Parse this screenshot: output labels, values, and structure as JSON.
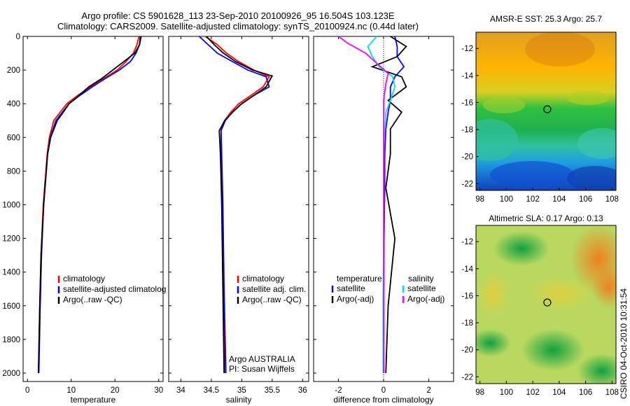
{
  "figure": {
    "title_line1": "Argo profile: CS 5901628_113 23-Sep-2010 20100926_95 16.504S 103.123E",
    "title_line2": "Climatology: CARS2009. Satellite-adjusted climatology: synTS_20100924.nc (0.44d later)",
    "credit": "CSIRO 04-Oct-2010 10:31:54",
    "argo_label_line1": "Argo AUSTRALIA",
    "argo_label_line2": "PI: Susan Wijffels"
  },
  "colors": {
    "climatology": "#ff0000",
    "satellite": "#0000ff",
    "argo": "#000000",
    "sat_sal": "#00e0e0",
    "argo_sal": "#ff00ff"
  },
  "chart_data": [
    {
      "type": "line",
      "xlabel": "temperature",
      "xlim": [
        -1,
        31
      ],
      "ylim": [
        2050,
        0
      ],
      "xticks": [
        0,
        10,
        20,
        30
      ],
      "yticks": [
        0,
        200,
        400,
        600,
        800,
        1000,
        1200,
        1400,
        1600,
        1800,
        2000
      ],
      "legend": [
        "climatology",
        "satellite-adjusted climatolog",
        "Argo(..raw -QC)"
      ],
      "series": [
        {
          "name": "climatology",
          "color": "#ff0000",
          "x": [
            25.5,
            25.0,
            24.2,
            22.5,
            20.5,
            17.5,
            14.5,
            11.5,
            9.0,
            7.5,
            6.0,
            5.0,
            4.5,
            3.6,
            3.1,
            2.8,
            2.5
          ],
          "y": [
            0,
            50,
            100,
            150,
            200,
            250,
            300,
            350,
            400,
            450,
            500,
            600,
            700,
            1000,
            1300,
            1600,
            2000
          ]
        },
        {
          "name": "satellite-adjusted climatology",
          "color": "#0000ff",
          "x": [
            26.0,
            25.6,
            24.8,
            23.5,
            21.0,
            17.8,
            14.8,
            12.0,
            9.5,
            8.0,
            6.5,
            5.2,
            4.6,
            3.7,
            3.2,
            2.9,
            2.6
          ],
          "y": [
            0,
            50,
            100,
            150,
            200,
            250,
            300,
            350,
            400,
            450,
            500,
            600,
            700,
            1000,
            1300,
            1600,
            2000
          ]
        },
        {
          "name": "Argo(..raw -QC)",
          "color": "#000000",
          "x": [
            25.8,
            25.6,
            24.5,
            22.0,
            19.5,
            17.0,
            14.0,
            11.8,
            9.5,
            8.2,
            6.8,
            5.3,
            4.6,
            3.7,
            3.1,
            2.8,
            2.5
          ],
          "y": [
            0,
            50,
            100,
            150,
            200,
            250,
            300,
            350,
            400,
            450,
            500,
            600,
            700,
            1000,
            1300,
            1600,
            2000
          ]
        }
      ]
    },
    {
      "type": "line",
      "xlabel": "salinity",
      "xlim": [
        33.8,
        36.1
      ],
      "ylim": [
        2050,
        0
      ],
      "xticks": [
        34,
        34.5,
        35,
        35.5,
        36
      ],
      "legend": [
        "climatology",
        "satellite adj. clim.",
        "Argo(..raw -QC)"
      ],
      "series": [
        {
          "name": "climatology",
          "color": "#ff0000",
          "x": [
            34.4,
            34.6,
            34.75,
            34.95,
            35.2,
            35.45,
            35.35,
            35.15,
            34.95,
            34.82,
            34.72,
            34.66,
            34.66,
            34.68,
            34.7,
            34.72
          ],
          "y": [
            0,
            50,
            100,
            150,
            200,
            240,
            300,
            350,
            400,
            450,
            500,
            560,
            700,
            1000,
            1500,
            2000
          ]
        },
        {
          "name": "satellite adj. clim.",
          "color": "#0000ff",
          "x": [
            34.3,
            34.45,
            34.6,
            34.85,
            35.1,
            35.4,
            35.45,
            35.2,
            35.0,
            34.85,
            34.73,
            34.66,
            34.67,
            34.69,
            34.71,
            34.74
          ],
          "y": [
            0,
            50,
            100,
            150,
            200,
            240,
            300,
            350,
            400,
            450,
            500,
            560,
            700,
            1000,
            1500,
            2000
          ]
        },
        {
          "name": "Argo(..raw -QC)",
          "color": "#000000",
          "x": [
            34.42,
            34.55,
            34.7,
            34.9,
            35.18,
            35.5,
            35.4,
            35.2,
            35.0,
            34.85,
            34.72,
            34.63,
            34.65,
            34.67,
            34.69,
            34.71
          ],
          "y": [
            0,
            50,
            100,
            150,
            200,
            235,
            300,
            350,
            400,
            450,
            500,
            560,
            700,
            1000,
            1500,
            2000
          ]
        }
      ]
    },
    {
      "type": "line",
      "xlabel": "difference from climatology",
      "xlim": [
        -3.1,
        3.1
      ],
      "ylim": [
        2050,
        0
      ],
      "xticks": [
        -2,
        0,
        2
      ],
      "legend": [
        "temperature",
        "satellite",
        "Argo(-adj)",
        "salinity",
        "satellite",
        "Argo(-adj)"
      ],
      "series": [
        {
          "name": "satellite",
          "color": "#0000ff",
          "x": [
            0.5,
            0.6,
            0.6,
            0.9,
            0.5,
            0.3,
            0.3,
            0.2,
            0.1,
            0.05,
            0.05,
            0.02,
            0.0,
            0.0
          ],
          "y": [
            0,
            60,
            120,
            180,
            240,
            300,
            380,
            450,
            550,
            700,
            900,
            1200,
            1600,
            2000
          ]
        },
        {
          "name": "Argo(-adj)",
          "color": "#000000",
          "x": [
            0.3,
            1.0,
            0.6,
            -0.5,
            0.8,
            1.0,
            0.2,
            0.8,
            0.3,
            0.3,
            0.1,
            0.5,
            0.2,
            0.1
          ],
          "y": [
            0,
            60,
            120,
            180,
            240,
            300,
            380,
            450,
            550,
            700,
            900,
            1200,
            1600,
            2000
          ]
        },
        {
          "name": "satellite",
          "color": "#00e0e0",
          "x": [
            -0.3,
            -0.7,
            -0.5,
            -0.2,
            0.4,
            0.5,
            0.3,
            0.1,
            0.05,
            0.0,
            0.0,
            0.0,
            -0.02,
            -0.02
          ],
          "y": [
            0,
            60,
            120,
            180,
            240,
            300,
            380,
            450,
            550,
            700,
            900,
            1200,
            1600,
            2000
          ]
        },
        {
          "name": "Argo(-adj)",
          "color": "#ff00ff",
          "x": [
            -2.0,
            -1.6,
            -0.8,
            -0.3,
            0.2,
            0.1,
            0.0,
            0.0,
            0.0,
            0.0,
            0.0,
            0.0,
            0.0,
            0.0
          ],
          "y": [
            0,
            40,
            100,
            160,
            220,
            280,
            380,
            450,
            550,
            700,
            900,
            1200,
            1600,
            2000
          ]
        }
      ]
    },
    {
      "type": "heatmap",
      "title": "AMSR-E SST: 25.3 Argo: 25.7",
      "xlim": [
        97.7,
        108.3
      ],
      "ylim": [
        -22.5,
        -10.8
      ],
      "xticks": [
        98,
        100,
        102,
        104,
        106,
        108
      ],
      "yticks": [
        -12,
        -14,
        -16,
        -18,
        -20,
        -22
      ],
      "marker": {
        "lon": 103.1,
        "lat": -16.5
      }
    },
    {
      "type": "heatmap",
      "title": "Altimetric SLA: 0.17 Argo: 0.13",
      "xlim": [
        97.7,
        108.3
      ],
      "ylim": [
        -22.5,
        -10.8
      ],
      "xticks": [
        98,
        100,
        102,
        104,
        106,
        108
      ],
      "yticks": [
        -12,
        -14,
        -16,
        -18,
        -20,
        -22
      ],
      "marker": {
        "lon": 103.1,
        "lat": -16.5
      }
    }
  ]
}
